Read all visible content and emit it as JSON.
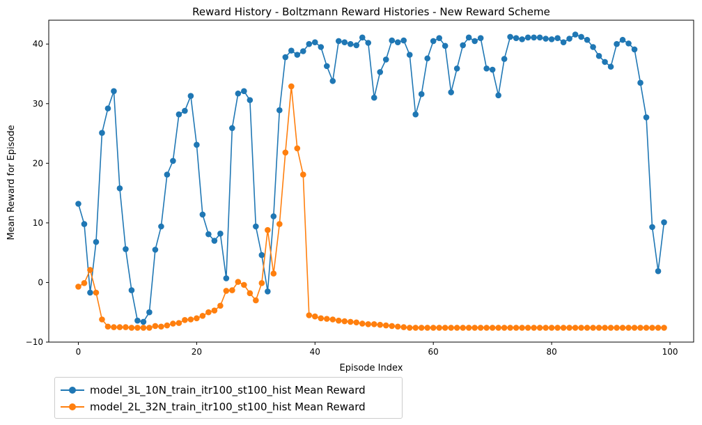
{
  "chart_data": {
    "type": "line",
    "title": "Reward History - Boltzmann Reward Histories - New Reward Scheme",
    "xlabel": "Episode Index",
    "ylabel": "Mean Reward for Episode",
    "xlim": [
      -5,
      104
    ],
    "ylim": [
      -10,
      44
    ],
    "xticks": [
      0,
      20,
      40,
      60,
      80,
      100
    ],
    "yticks": [
      -10,
      0,
      10,
      20,
      30,
      40
    ],
    "grid": false,
    "legend_position": "bottom-left, below plot",
    "series": [
      {
        "name": "model_3L_10N_train_itr100_st100_hist Mean Reward",
        "color": "#1f77b4",
        "values": [
          13.2,
          9.8,
          -1.7,
          6.8,
          25.1,
          29.2,
          32.1,
          15.8,
          5.6,
          -1.3,
          -6.4,
          -6.6,
          -5.0,
          5.5,
          9.4,
          18.1,
          20.4,
          28.2,
          28.8,
          31.3,
          23.1,
          11.4,
          8.1,
          7.0,
          8.2,
          0.7,
          25.9,
          31.7,
          32.1,
          30.6,
          9.4,
          4.6,
          -1.5,
          11.1,
          28.9,
          37.8,
          38.9,
          38.2,
          38.8,
          40.0,
          40.3,
          39.5,
          36.3,
          33.8,
          40.5,
          40.3,
          40.0,
          39.8,
          41.1,
          40.2,
          31.0,
          35.3,
          37.4,
          40.6,
          40.3,
          40.6,
          38.2,
          28.2,
          31.6,
          37.6,
          40.5,
          41.0,
          39.7,
          31.9,
          35.9,
          39.8,
          41.1,
          40.5,
          41.0,
          35.9,
          35.7,
          31.4,
          37.5,
          41.2,
          41.0,
          40.8,
          41.1,
          41.1,
          41.1,
          40.9,
          40.8,
          41.0,
          40.3,
          40.9,
          41.6,
          41.2,
          40.7,
          39.5,
          38.0,
          37.0,
          36.2,
          40.0,
          40.7,
          40.1,
          39.1,
          33.5,
          27.7,
          9.3,
          1.9,
          10.1
        ]
      },
      {
        "name": "model_2L_32N_train_itr100_st100_hist Mean Reward",
        "color": "#ff7f0e",
        "values": [
          -0.7,
          -0.1,
          2.1,
          -1.7,
          -6.2,
          -7.4,
          -7.5,
          -7.5,
          -7.5,
          -7.6,
          -7.6,
          -7.6,
          -7.6,
          -7.3,
          -7.4,
          -7.2,
          -6.9,
          -6.8,
          -6.3,
          -6.2,
          -6.0,
          -5.6,
          -5.0,
          -4.7,
          -3.9,
          -1.4,
          -1.3,
          0.1,
          -0.4,
          -1.8,
          -3.0,
          -0.1,
          8.8,
          1.5,
          9.8,
          21.8,
          32.9,
          22.5,
          18.1,
          -5.5,
          -5.7,
          -6.0,
          -6.1,
          -6.2,
          -6.4,
          -6.5,
          -6.6,
          -6.7,
          -6.9,
          -7.0,
          -7.0,
          -7.1,
          -7.2,
          -7.3,
          -7.4,
          -7.5,
          -7.6,
          -7.6,
          -7.6,
          -7.6,
          -7.6,
          -7.6,
          -7.6,
          -7.6,
          -7.6,
          -7.6,
          -7.6,
          -7.6,
          -7.6,
          -7.6,
          -7.6,
          -7.6,
          -7.6,
          -7.6,
          -7.6,
          -7.6,
          -7.6,
          -7.6,
          -7.6,
          -7.6,
          -7.6,
          -7.6,
          -7.6,
          -7.6,
          -7.6,
          -7.6,
          -7.6,
          -7.6,
          -7.6,
          -7.6,
          -7.6,
          -7.6,
          -7.6,
          -7.6,
          -7.6,
          -7.6,
          -7.6,
          -7.6,
          -7.6,
          -7.6
        ]
      }
    ]
  }
}
